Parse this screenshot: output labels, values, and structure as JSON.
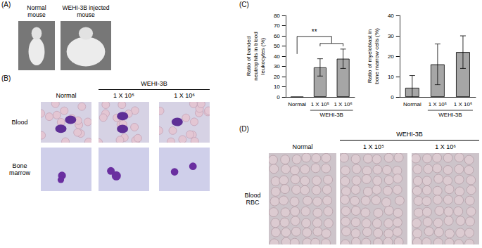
{
  "panels": {
    "A": {
      "letter": "(A)",
      "images": [
        "Normal mouse",
        "WEHI-3B injected mouse"
      ]
    },
    "B": {
      "letter": "(B)",
      "group": "WEHI-3B",
      "columns": [
        "Normal",
        "1 X 10⁵",
        "1 X 10⁶"
      ],
      "rows": [
        "Blood",
        "Bone marrow"
      ]
    },
    "C": {
      "letter": "(C)"
    },
    "D": {
      "letter": "(D)",
      "group": "WEHI-3B",
      "columns": [
        "Normal",
        "1 X 10⁵",
        "1 X 10⁶"
      ],
      "rows": [
        "Blood RBC"
      ]
    }
  },
  "chart_data": [
    {
      "type": "bar",
      "y_label": "Ratio of banded neutrophils in blood leukocytes (%)",
      "categories": [
        "Normal",
        "1 X 10⁵",
        "1 X 10⁶"
      ],
      "group_label": "WEHI-3B",
      "values": [
        0,
        29,
        37.5
      ],
      "errors": [
        0,
        8.5,
        9.5
      ],
      "color": "#a6a6a6",
      "ylim": [
        0,
        80
      ],
      "yticks": [
        0,
        10,
        20,
        30,
        40,
        50,
        60,
        70,
        80
      ],
      "grid": false,
      "significance": {
        "label": "**",
        "from": "Normal",
        "to": [
          "1 X 10⁵",
          "1 X 10⁶"
        ]
      }
    },
    {
      "type": "bar",
      "y_label": "Ratio of myeloblast in bone marrow cells (%)",
      "categories": [
        "Normal",
        "1 X 10⁵",
        "1 X 10⁶"
      ],
      "group_label": "WEHI-3B",
      "values": [
        4.5,
        16,
        22
      ],
      "errors": [
        6,
        10,
        8
      ],
      "color": "#a6a6a6",
      "ylim": [
        0,
        40
      ],
      "yticks": [
        0,
        10,
        20,
        30,
        40
      ],
      "grid": false
    }
  ]
}
